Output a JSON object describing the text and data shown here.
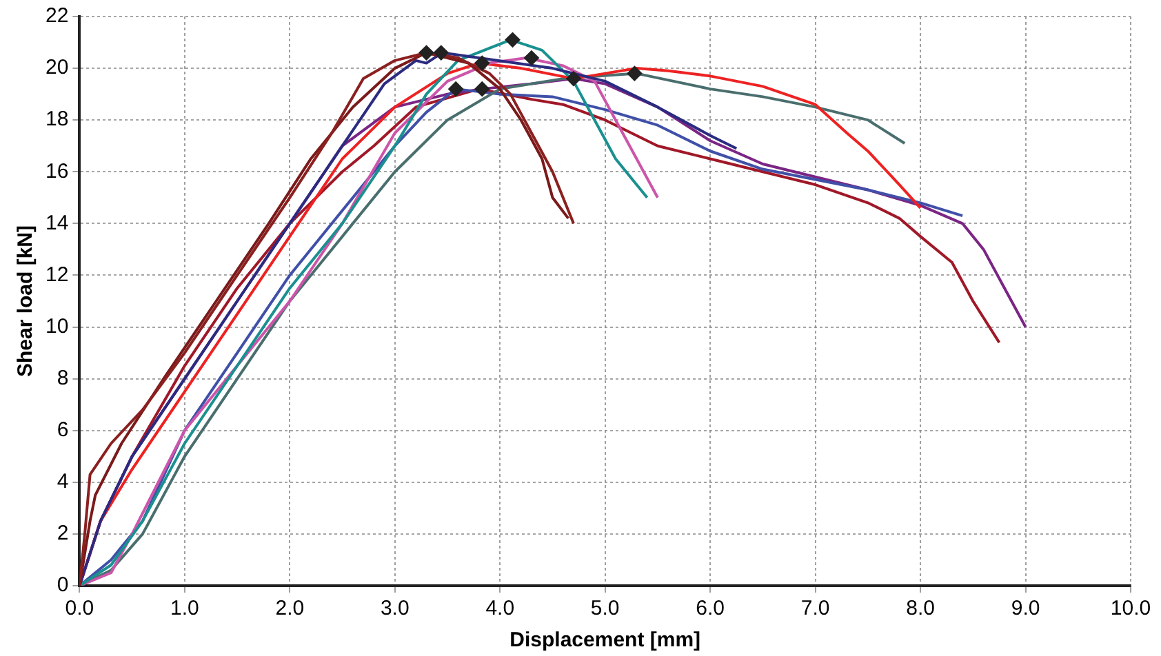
{
  "chart_data": {
    "type": "line",
    "xlabel": "Displacement [mm]",
    "ylabel": "Shear load [kN]",
    "xlim": [
      0,
      10
    ],
    "ylim": [
      0,
      22
    ],
    "xticks": [
      {
        "value": 0,
        "label": "0.0"
      },
      {
        "value": 1,
        "label": "1.0"
      },
      {
        "value": 2,
        "label": "2.0"
      },
      {
        "value": 3,
        "label": "3.0"
      },
      {
        "value": 4,
        "label": "4.0"
      },
      {
        "value": 5,
        "label": "5.0"
      },
      {
        "value": 6,
        "label": "6.0"
      },
      {
        "value": 7,
        "label": "7.0"
      },
      {
        "value": 8,
        "label": "8.0"
      },
      {
        "value": 9,
        "label": "9.0"
      },
      {
        "value": 10,
        "label": "10.0"
      }
    ],
    "yticks": [
      0,
      2,
      4,
      6,
      8,
      10,
      12,
      14,
      16,
      18,
      20,
      22
    ],
    "grid": true,
    "legend": false,
    "marker": "none",
    "line_style": "solid",
    "series": [
      {
        "color": "#8b2020",
        "x": [
          0,
          0.05,
          0.1,
          0.3,
          0.6,
          1.0,
          1.5,
          2.0,
          2.4,
          2.7,
          3.0,
          3.3,
          3.6,
          3.9,
          4.1,
          4.3,
          4.5,
          4.6,
          4.7
        ],
        "values": [
          0,
          2,
          4.3,
          5.5,
          6.8,
          9,
          12,
          15,
          17.5,
          19.6,
          20.3,
          20.6,
          20.4,
          19.8,
          19,
          17.5,
          16,
          15,
          14
        ]
      },
      {
        "color": "#7a1a1a",
        "x": [
          0,
          0.1,
          0.15,
          0.4,
          0.8,
          1.3,
          1.8,
          2.2,
          2.6,
          3.0,
          3.3,
          3.7,
          4.0,
          4.2,
          4.4,
          4.5,
          4.65
        ],
        "values": [
          0,
          2.5,
          3.5,
          5.5,
          8,
          11,
          14,
          16.5,
          18.5,
          20,
          20.6,
          20.2,
          19.2,
          18,
          16.5,
          15,
          14.2
        ]
      },
      {
        "color": "#2b2b80",
        "x": [
          0,
          0.2,
          0.5,
          1.0,
          1.5,
          2.0,
          2.5,
          2.9,
          3.2,
          3.3,
          3.45,
          3.8,
          4.5,
          5.0,
          5.5,
          6.0,
          6.25
        ],
        "values": [
          0,
          2.5,
          5,
          8,
          11,
          14,
          17,
          19.4,
          20.3,
          20.2,
          20.6,
          20.4,
          20,
          19.5,
          18.5,
          17.4,
          16.9
        ]
      },
      {
        "color": "#1a9090",
        "x": [
          0,
          0.3,
          0.6,
          1.0,
          1.5,
          2.0,
          2.5,
          3.0,
          3.3,
          3.6,
          4.1,
          4.4,
          4.7,
          4.9,
          5.1,
          5.3,
          5.4
        ],
        "values": [
          0,
          0.8,
          2.5,
          5.5,
          8.5,
          11.5,
          14,
          17,
          19,
          20.3,
          21.1,
          20.7,
          19.5,
          18,
          16.5,
          15.5,
          15
        ]
      },
      {
        "color": "#cc55aa",
        "x": [
          0,
          0.3,
          0.5,
          1.0,
          1.5,
          2.0,
          2.5,
          3.0,
          3.5,
          3.9,
          4.25,
          4.6,
          4.9,
          5.1,
          5.3,
          5.5
        ],
        "values": [
          0,
          0.5,
          2,
          6,
          8.5,
          11,
          14,
          17.5,
          19.5,
          20.2,
          20.4,
          20.1,
          19.5,
          18,
          16.5,
          15
        ]
      },
      {
        "color": "#ee2222",
        "x": [
          0,
          0.2,
          0.5,
          1.0,
          1.5,
          2.0,
          2.5,
          3.0,
          3.5,
          3.8,
          4.2,
          4.7,
          5.0,
          5.3,
          5.6,
          6.0,
          6.5,
          7.0,
          7.3,
          7.5,
          7.8,
          8.0
        ],
        "values": [
          0,
          2.5,
          4.5,
          7.5,
          10.5,
          13.5,
          16.5,
          18.5,
          19.8,
          20.2,
          20,
          19.6,
          19.8,
          20,
          19.9,
          19.7,
          19.3,
          18.6,
          17.5,
          16.8,
          15.5,
          14.6
        ]
      },
      {
        "color": "#4a6e6e",
        "x": [
          0,
          0.3,
          0.6,
          1.0,
          1.5,
          2.0,
          2.5,
          3.0,
          3.5,
          4.0,
          4.6,
          5.3,
          6.0,
          6.5,
          7.0,
          7.5,
          7.85
        ],
        "values": [
          0,
          0.6,
          2,
          5,
          8,
          11,
          13.5,
          16,
          18,
          19.2,
          19.6,
          19.8,
          19.2,
          18.9,
          18.5,
          18,
          17.1
        ]
      },
      {
        "color": "#4050a8",
        "x": [
          0,
          0.3,
          0.6,
          1.0,
          1.5,
          2.0,
          2.5,
          3.0,
          3.3,
          3.58,
          4.0,
          4.5,
          5.0,
          5.5,
          6.0,
          6.5,
          7.0,
          7.5,
          8.0,
          8.4
        ],
        "values": [
          0,
          1,
          2.5,
          6,
          9,
          12,
          14.5,
          17,
          18.3,
          19.2,
          19,
          18.9,
          18.4,
          17.8,
          16.8,
          16.1,
          15.7,
          15.3,
          14.8,
          14.3
        ]
      },
      {
        "color": "#7b2585",
        "x": [
          0,
          0.2,
          0.5,
          1.0,
          1.5,
          2.0,
          2.5,
          3.0,
          3.5,
          3.83,
          4.3,
          4.7,
          5.0,
          5.5,
          6.0,
          6.5,
          7.0,
          7.5,
          8.0,
          8.4,
          8.6,
          8.8,
          9.0
        ],
        "values": [
          0,
          2.5,
          5,
          8,
          11,
          14,
          17,
          18.5,
          19,
          19.2,
          19.4,
          19.6,
          19.4,
          18.5,
          17.2,
          16.3,
          15.8,
          15.3,
          14.7,
          14,
          13,
          11.5,
          10
        ]
      },
      {
        "color": "#a01828",
        "x": [
          0,
          0.2,
          0.5,
          1.0,
          1.5,
          2.0,
          2.5,
          2.8,
          3.2,
          3.8,
          4.3,
          4.6,
          5.0,
          5.5,
          6.0,
          6.5,
          7.0,
          7.5,
          7.8,
          8.0,
          8.3,
          8.5,
          8.75
        ],
        "values": [
          0,
          2.5,
          5,
          8.5,
          11.5,
          14,
          16,
          17,
          18.5,
          19.2,
          18.8,
          18.6,
          18,
          17,
          16.5,
          16,
          15.5,
          14.8,
          14.2,
          13.5,
          12.5,
          11,
          9.4
        ]
      },
      {
        "type": "scatter",
        "marker": "diamond",
        "color": "#222222",
        "x": [
          3.3,
          3.44,
          3.83,
          4.12,
          4.3,
          4.7,
          5.28,
          3.58,
          3.83
        ],
        "values": [
          20.6,
          20.6,
          20.2,
          21.1,
          20.4,
          19.6,
          19.8,
          19.2,
          19.2
        ]
      }
    ]
  }
}
